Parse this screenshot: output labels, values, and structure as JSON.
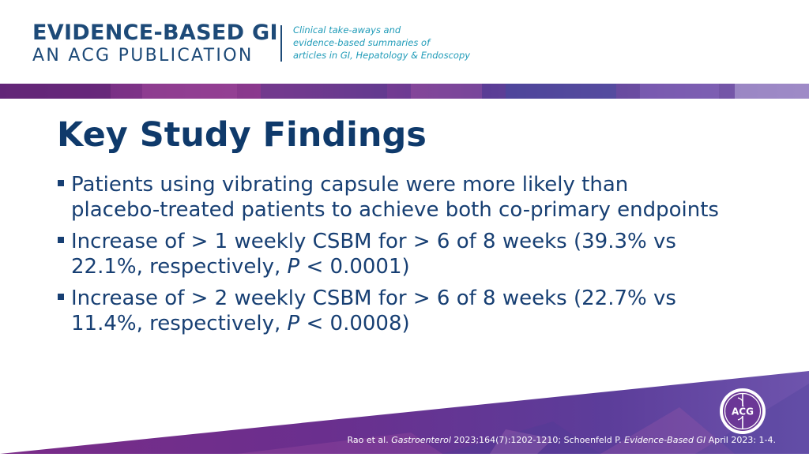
{
  "header": {
    "brand_line1": "EVIDENCE-BASED GI",
    "brand_line2": "AN ACG PUBLICATION",
    "tagline": [
      "Clinical take-aways and",
      "evidence-based summaries of",
      "articles in GI, Hepatology & Endoscopy"
    ]
  },
  "slide": {
    "title": "Key Study Findings",
    "bullets": [
      {
        "text": "Patients using vibrating capsule were more likely than placebo-treated patients to achieve both co-primary endpoints"
      },
      {
        "pre": "Increase of > 1 weekly CSBM for > 6 of 8 weeks (39.3% vs 22.1%, respectively, ",
        "italic": "P",
        "post": " < 0.0001)"
      },
      {
        "pre": "Increase of > 2 weekly CSBM for > 6 of 8 weeks (22.7% vs 11.4%, respectively, ",
        "italic": "P",
        "post": " < 0.0008)"
      }
    ]
  },
  "footer": {
    "citation_pre": "Rao et al. ",
    "citation_journal1": "Gastroenterol",
    "citation_mid": " 2023;164(7):1202-1210; Schoenfeld P. ",
    "citation_journal2": "Evidence-Based GI",
    "citation_post": " April 2023: 1-4.",
    "logo_text": "ACG"
  },
  "colors": {
    "brand_navy": "#1d4a78",
    "title_navy": "#0f3a6b",
    "tagline_teal": "#1f9bb8",
    "band_purple": "#7a2d86",
    "band_blue": "#4a4fa6"
  },
  "icons": {
    "logo": "acg-caduceus-logo",
    "bullet": "square-bullet"
  }
}
